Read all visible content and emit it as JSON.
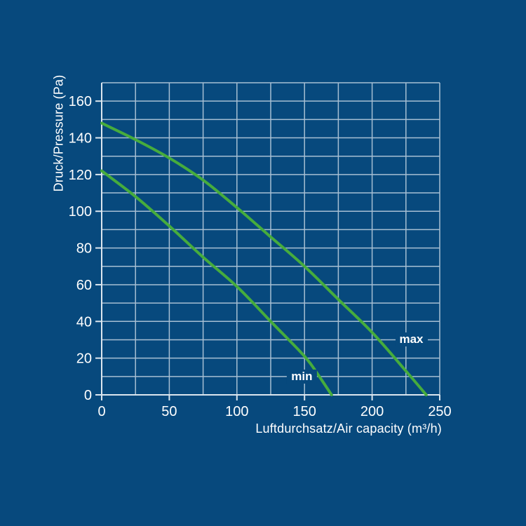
{
  "page": {
    "background": "#07497D"
  },
  "chart_data": {
    "type": "line",
    "title": "",
    "xlabel": "Luftdurchsatz/Air capacity (m³/h)",
    "ylabel": "Druck/Pressure (Pa)",
    "xlim": [
      0,
      250
    ],
    "ylim": [
      0,
      170
    ],
    "x_minor_step": 25,
    "y_minor_step": 10,
    "x_ticks": [
      "0",
      "50",
      "100",
      "150",
      "200",
      "250"
    ],
    "y_ticks": [
      "0",
      "20",
      "40",
      "60",
      "80",
      "100",
      "120",
      "140",
      "160"
    ],
    "grid": "on",
    "legend": "inline-labels-on-curves",
    "series": [
      {
        "name": "min",
        "label": "min",
        "label_at": {
          "x": 148,
          "y": 10
        },
        "points": [
          [
            0,
            122
          ],
          [
            25,
            108
          ],
          [
            50,
            92
          ],
          [
            75,
            75
          ],
          [
            100,
            59
          ],
          [
            125,
            40
          ],
          [
            150,
            21
          ],
          [
            160,
            11
          ],
          [
            170,
            0
          ]
        ]
      },
      {
        "name": "max",
        "label": "max",
        "label_at": {
          "x": 229,
          "y": 30
        },
        "points": [
          [
            0,
            148
          ],
          [
            25,
            139
          ],
          [
            50,
            129
          ],
          [
            75,
            117
          ],
          [
            100,
            102
          ],
          [
            125,
            86
          ],
          [
            150,
            70
          ],
          [
            175,
            52
          ],
          [
            200,
            34
          ],
          [
            225,
            13
          ],
          [
            240,
            0
          ]
        ]
      }
    ],
    "colors": {
      "background": "#07497D",
      "grid": "#A7BFD3",
      "axis": "#DCE6EE",
      "curve": "#46AC3D",
      "text": "#FFFFFF"
    }
  }
}
